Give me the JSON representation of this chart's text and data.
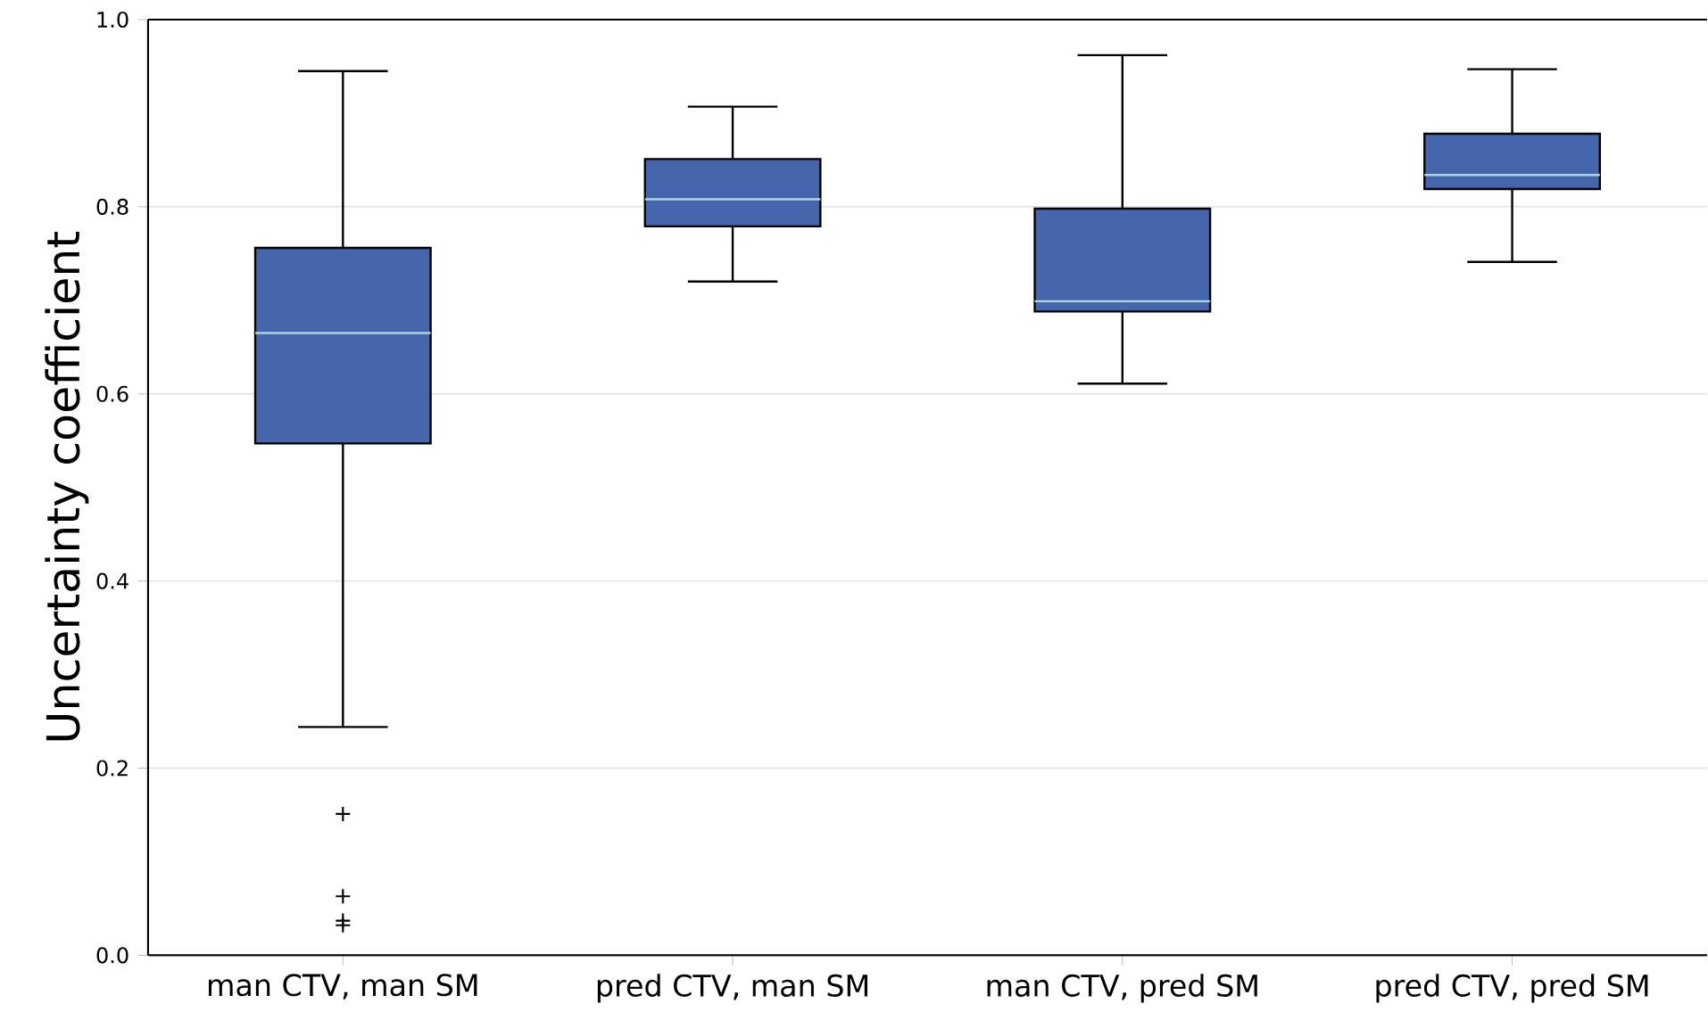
{
  "chart_data": {
    "type": "box",
    "ylabel": "Uncertainty coefficient",
    "categories": [
      "man CTV, man SM",
      "pred CTV, man SM",
      "man CTV, pred SM",
      "pred CTV, pred SM"
    ],
    "boxes": [
      {
        "low": 0.244,
        "q1": 0.547,
        "median": 0.665,
        "q3": 0.756,
        "high": 0.945,
        "outliers": [
          0.151,
          0.063,
          0.037,
          0.032
        ]
      },
      {
        "low": 0.72,
        "q1": 0.779,
        "median": 0.808,
        "q3": 0.851,
        "high": 0.907
      },
      {
        "low": 0.611,
        "q1": 0.688,
        "median": 0.699,
        "q3": 0.798,
        "high": 0.962
      },
      {
        "low": 0.741,
        "q1": 0.819,
        "median": 0.834,
        "q3": 0.878,
        "high": 0.947
      }
    ],
    "color": "#4565ad",
    "ylim": [
      0,
      1
    ],
    "yticks": [
      {
        "value": 0,
        "label": "0.0"
      },
      {
        "value": 0.2,
        "label": "0.2"
      },
      {
        "value": 0.4,
        "label": "0.4"
      },
      {
        "value": 0.6,
        "label": "0.6"
      },
      {
        "value": 0.8,
        "label": "0.8"
      },
      {
        "value": 1,
        "label": "1.0"
      }
    ],
    "grid": "y",
    "marker": "cross"
  }
}
